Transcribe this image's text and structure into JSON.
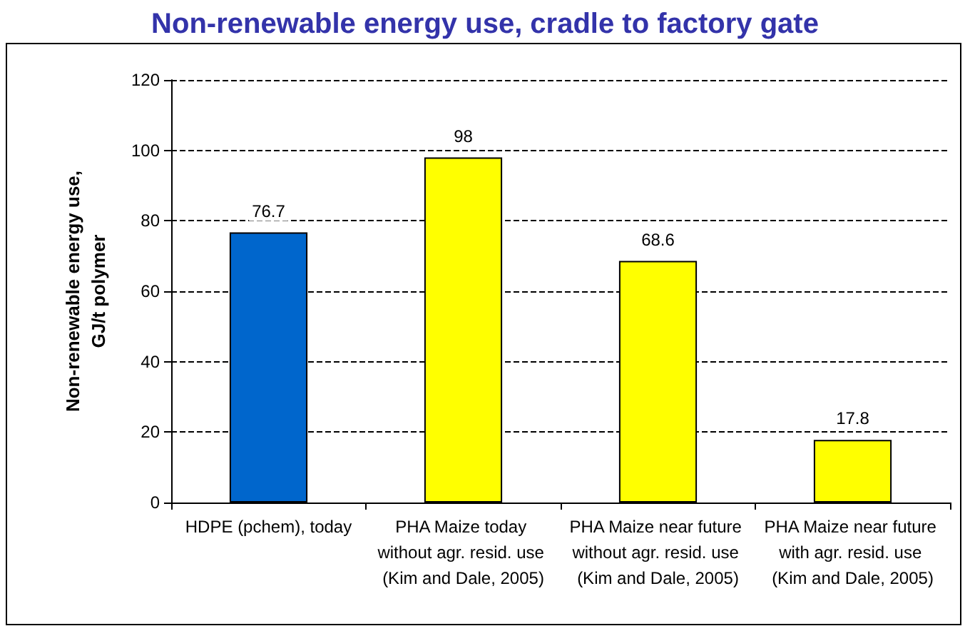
{
  "chart_data": {
    "type": "bar",
    "title": "Non-renewable energy use, cradle to factory gate",
    "ylabel": "Non-renewable energy use,\nGJ/t polymer",
    "categories": [
      "HDPE (pchem), today",
      "PHA Maize today without agr. resid. use (Kim and Dale, 2005)",
      "PHA Maize near future without agr. resid. use (Kim and Dale, 2005)",
      "PHA Maize near future with agr. resid. use (Kim and Dale, 2005)"
    ],
    "values": [
      76.7,
      98,
      68.6,
      17.8
    ],
    "colors": [
      "#0066cc",
      "#ffff00",
      "#ffff00",
      "#ffff00"
    ],
    "ylim": [
      0,
      120
    ],
    "yticks": [
      0,
      20,
      40,
      60,
      80,
      100,
      120
    ],
    "grid": "y",
    "data_labels": true
  }
}
